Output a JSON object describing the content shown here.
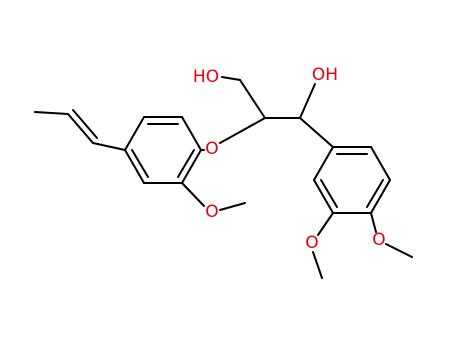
{
  "atoms": {
    "ho_left": "HO",
    "oh_right": "OH",
    "ether_o": "O",
    "methoxy_left_o": "O",
    "methoxy_right_a_o": "O",
    "methoxy_right_b_o": "O"
  }
}
